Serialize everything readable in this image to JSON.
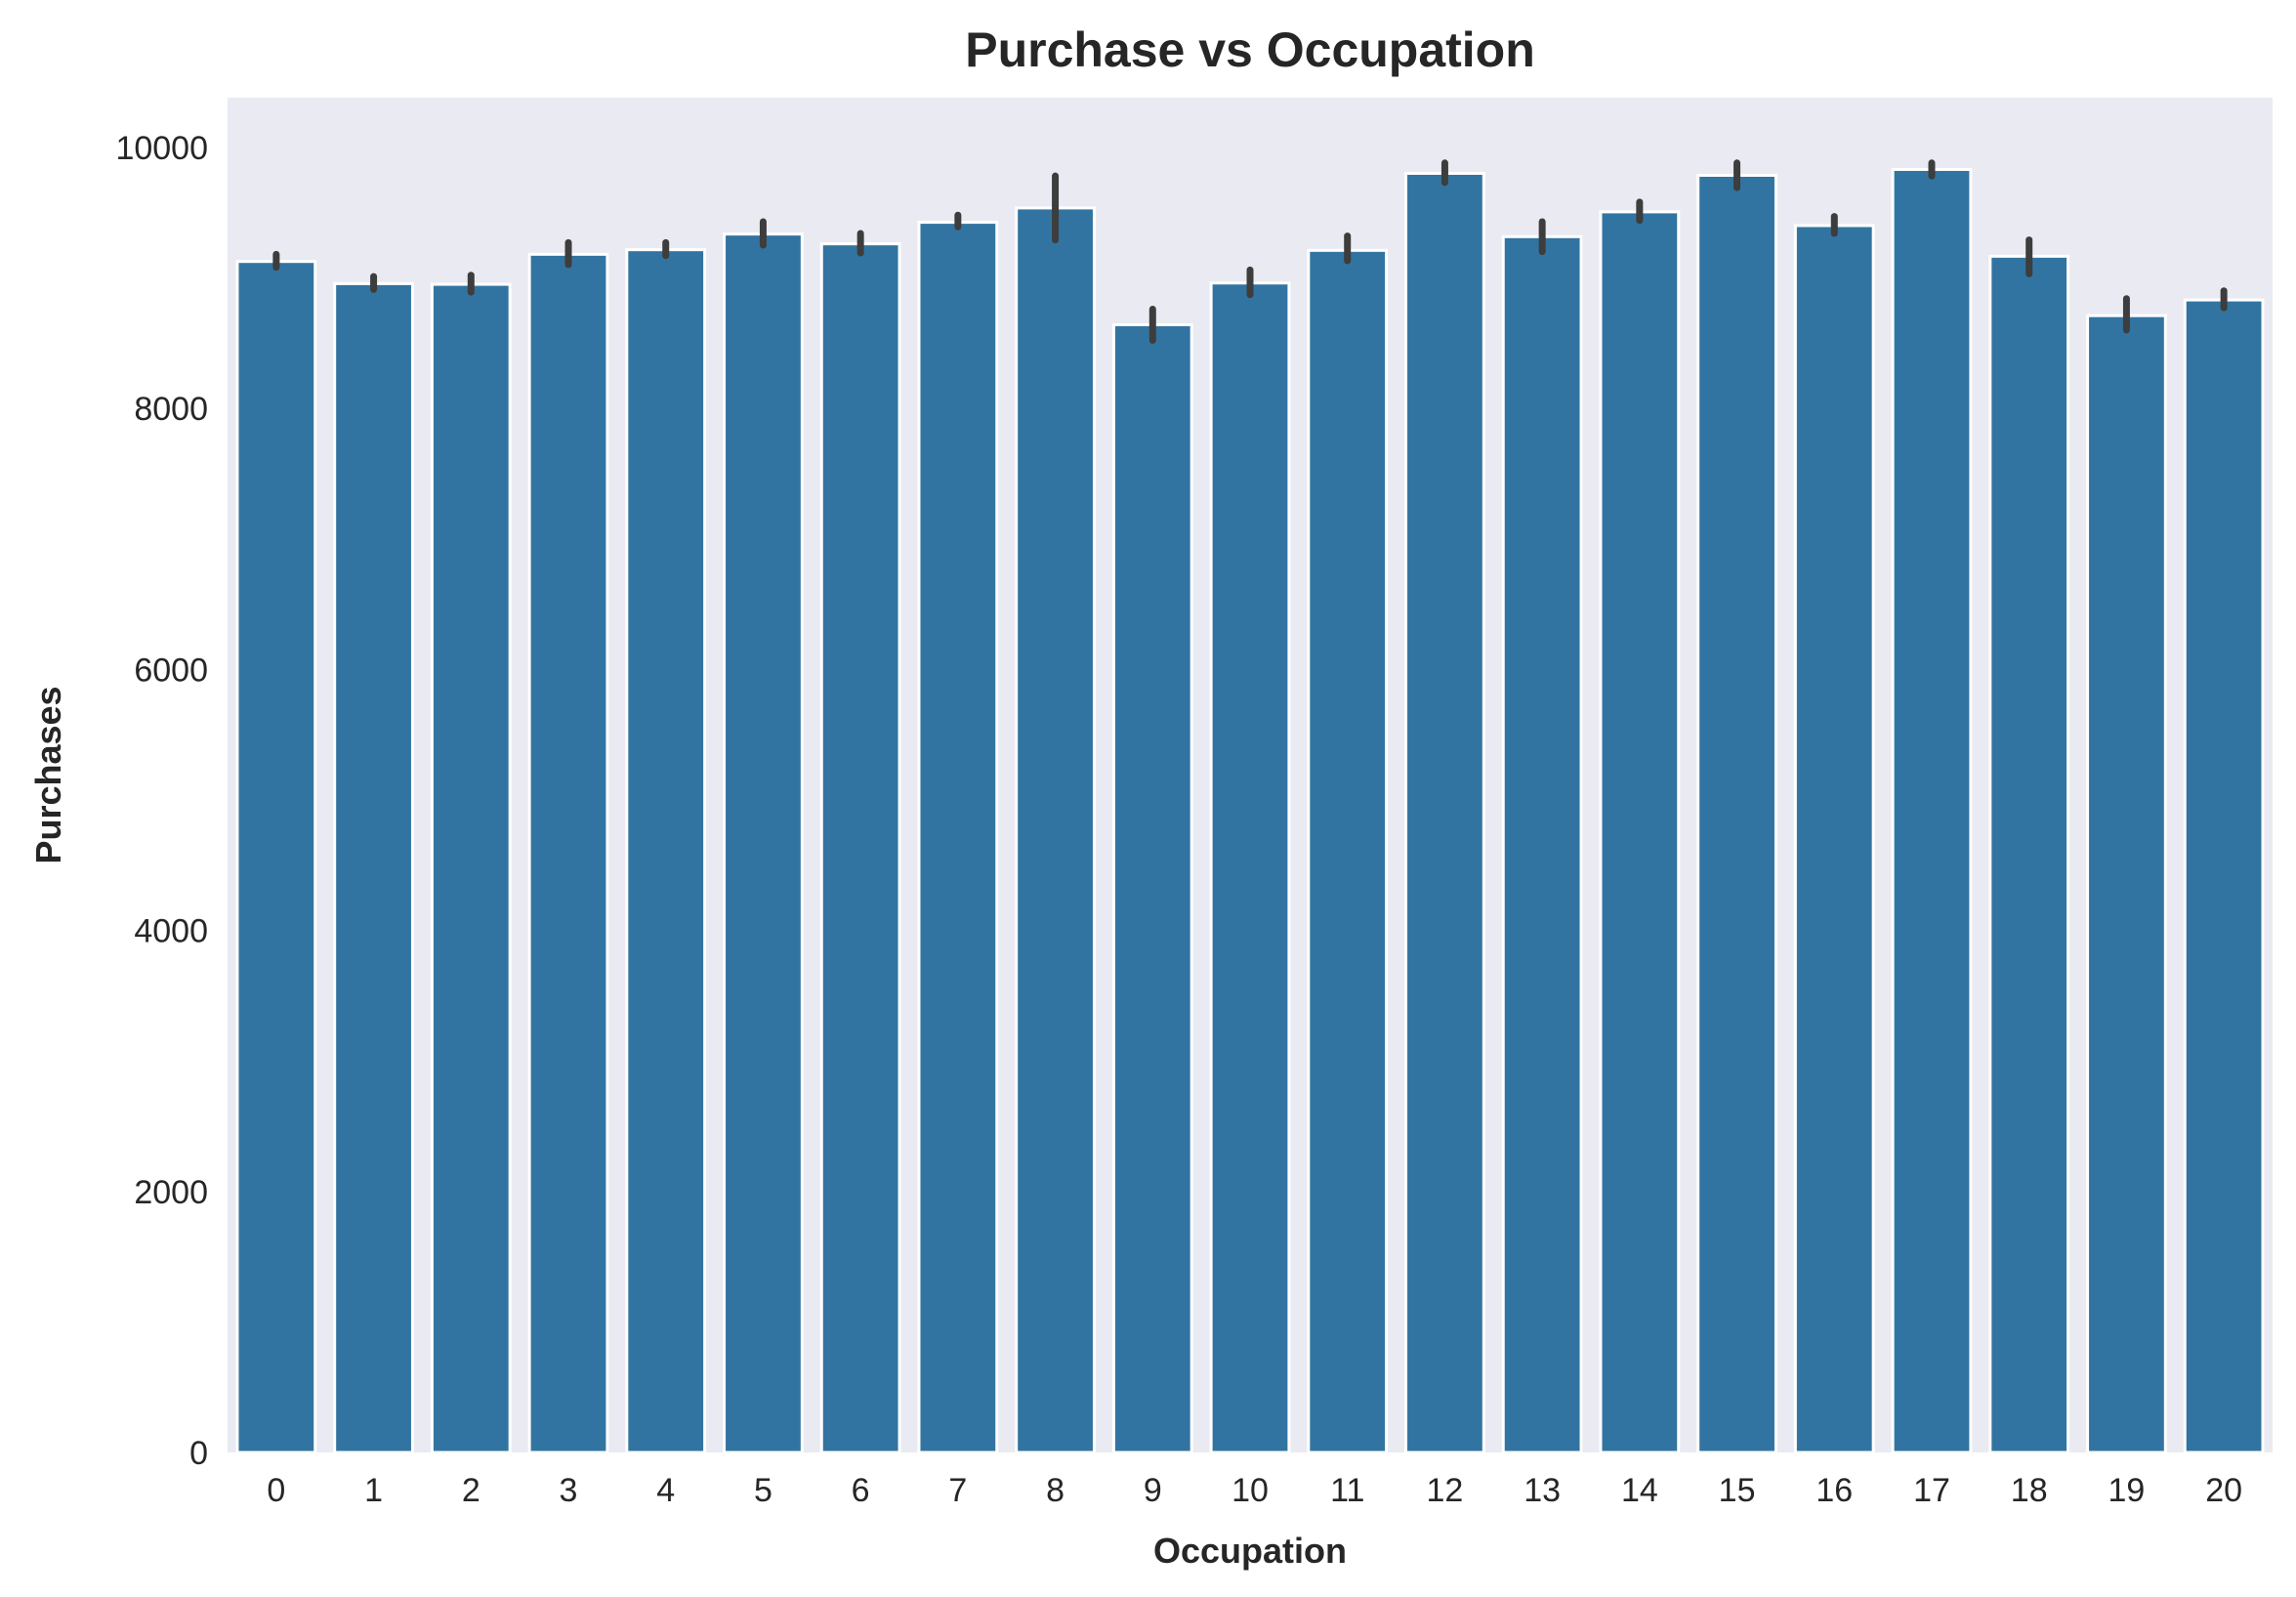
{
  "chart_data": {
    "type": "bar",
    "title": "Purchase vs Occupation",
    "xlabel": "Occupation",
    "ylabel": "Purchases",
    "categories": [
      "0",
      "1",
      "2",
      "3",
      "4",
      "5",
      "6",
      "7",
      "8",
      "9",
      "10",
      "11",
      "12",
      "13",
      "14",
      "15",
      "16",
      "17",
      "18",
      "19",
      "20"
    ],
    "values": [
      9125,
      8955,
      8950,
      9180,
      9215,
      9335,
      9260,
      9425,
      9535,
      8640,
      8960,
      9210,
      9800,
      9315,
      9505,
      9785,
      9400,
      9830,
      9165,
      8710,
      8830
    ],
    "error_low": [
      9080,
      8910,
      8890,
      9100,
      9170,
      9250,
      9190,
      9390,
      9290,
      8520,
      8870,
      9130,
      9730,
      9200,
      9440,
      9690,
      9340,
      9780,
      9030,
      8600,
      8770
    ],
    "error_high": [
      9180,
      9010,
      9020,
      9270,
      9270,
      9430,
      9340,
      9480,
      9780,
      8760,
      9060,
      9320,
      9880,
      9430,
      9580,
      9880,
      9470,
      9880,
      9290,
      8840,
      8900
    ],
    "ylim": [
      0,
      10380
    ],
    "yticks": [
      0,
      2000,
      4000,
      6000,
      8000,
      10000
    ],
    "grid": false,
    "colors": {
      "bar": "#3274a1",
      "bar_edge": "#ffffff",
      "error": "#3d3d3d",
      "plot_bg": "#eaeaf2"
    }
  }
}
